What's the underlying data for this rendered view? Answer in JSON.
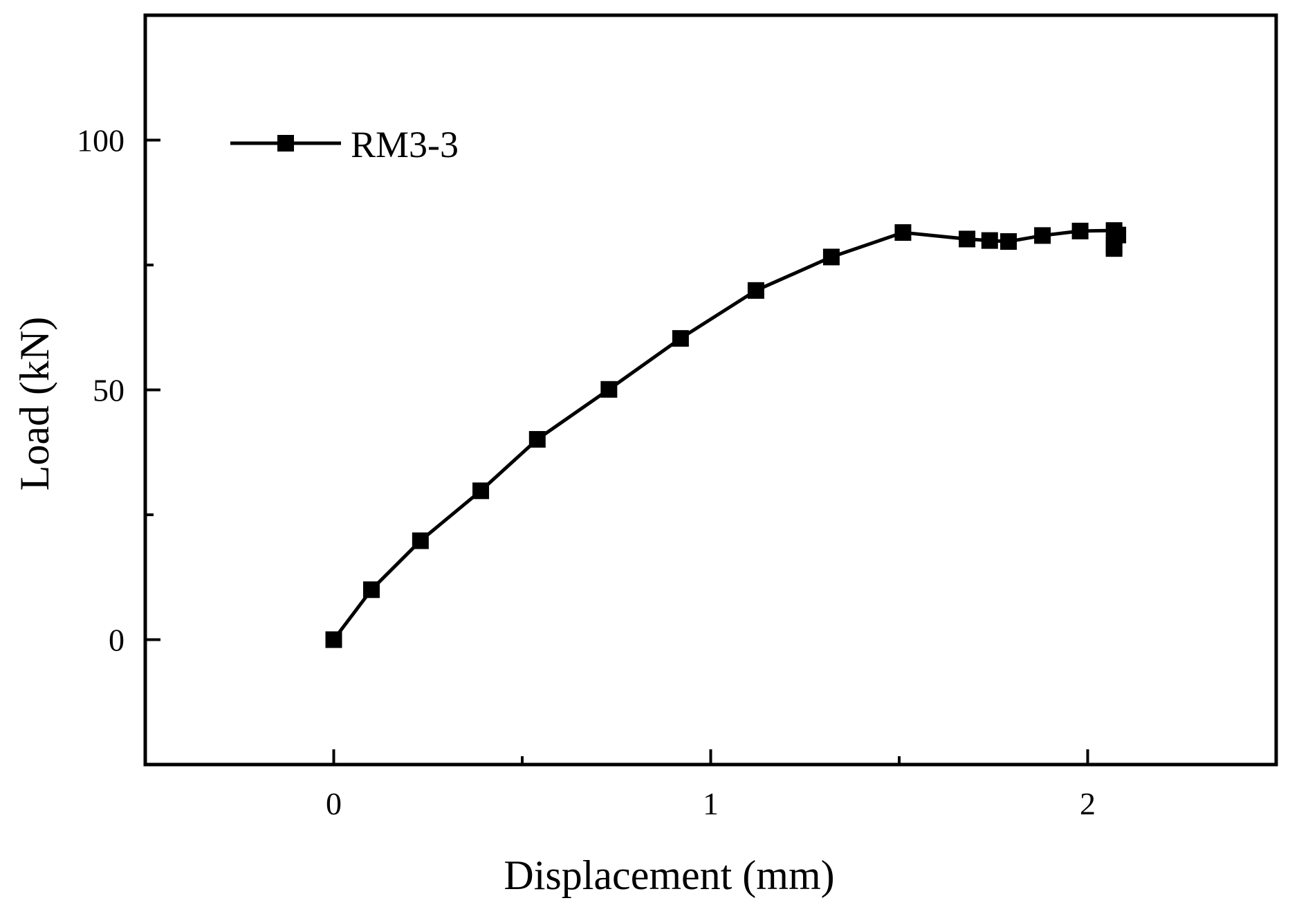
{
  "chart_data": {
    "type": "line",
    "xlabel": "Displacement (mm)",
    "ylabel": "Load (kN)",
    "xlim": [
      -0.5,
      2.5
    ],
    "ylim": [
      -25,
      125
    ],
    "x_ticks": [
      0,
      1,
      2
    ],
    "x_tick_labels": [
      "0",
      "1",
      "2"
    ],
    "x_minor_ticks": [
      0.5,
      1.5
    ],
    "y_ticks": [
      0,
      50,
      100
    ],
    "y_tick_labels": [
      "0",
      "50",
      "100"
    ],
    "y_minor_ticks": [
      25,
      75
    ],
    "grid": false,
    "legend_position": "top-left",
    "series": [
      {
        "name": "RM3-3",
        "color": "#000000",
        "marker": "square",
        "x": [
          0.0,
          0.1,
          0.23,
          0.39,
          0.54,
          0.73,
          0.92,
          1.12,
          1.32,
          1.51,
          1.68,
          1.74,
          1.79,
          1.88,
          1.98,
          2.07,
          2.07,
          2.07,
          2.08
        ],
        "y": [
          0.0,
          10.0,
          19.8,
          29.8,
          40.1,
          50.1,
          60.3,
          69.9,
          76.6,
          81.5,
          80.2,
          79.9,
          79.7,
          80.9,
          81.8,
          81.9,
          78.8,
          78.3,
          81.0
        ]
      }
    ]
  }
}
